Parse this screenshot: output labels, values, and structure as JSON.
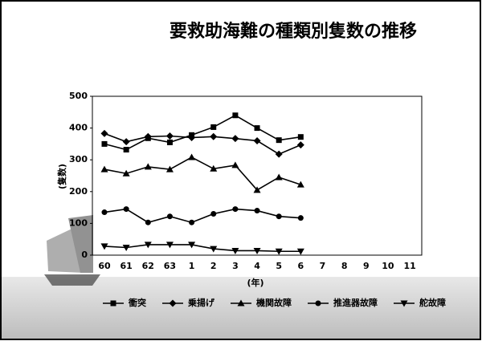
{
  "chart_data": {
    "type": "line",
    "title": "要救助海難の種類別隻数の推移",
    "ylabel": "(隻数)",
    "xlabel": "(年)",
    "categories": [
      "60",
      "61",
      "62",
      "63",
      "1",
      "2",
      "3",
      "4",
      "5",
      "6",
      "7",
      "8",
      "9",
      "10",
      "11"
    ],
    "series": [
      {
        "name": "衝突",
        "color": "#000000",
        "marker": "square",
        "values": [
          350,
          332,
          368,
          355,
          378,
          403,
          440,
          400,
          362,
          372,
          null,
          null,
          null,
          null,
          null
        ]
      },
      {
        "name": "乗揚げ",
        "color": "#000000",
        "marker": "diamond",
        "values": [
          383,
          357,
          373,
          375,
          370,
          373,
          367,
          360,
          318,
          347,
          null,
          null,
          null,
          null,
          null
        ]
      },
      {
        "name": "機関故障",
        "color": "#000000",
        "marker": "triangle",
        "values": [
          270,
          257,
          278,
          270,
          308,
          272,
          283,
          205,
          245,
          222,
          null,
          null,
          null,
          null,
          null
        ]
      },
      {
        "name": "推進器故障",
        "color": "#000000",
        "marker": "circle",
        "values": [
          135,
          145,
          103,
          122,
          103,
          130,
          145,
          140,
          122,
          117,
          null,
          null,
          null,
          null,
          null
        ]
      },
      {
        "name": "舵故障",
        "color": "#000000",
        "marker": "triangle-down",
        "values": [
          28,
          24,
          33,
          33,
          33,
          20,
          14,
          14,
          12,
          12,
          null,
          null,
          null,
          null,
          null
        ]
      }
    ],
    "ylim": [
      0,
      500
    ],
    "yticks": [
      0,
      100,
      200,
      300,
      400,
      500
    ],
    "legend": "bottom"
  }
}
